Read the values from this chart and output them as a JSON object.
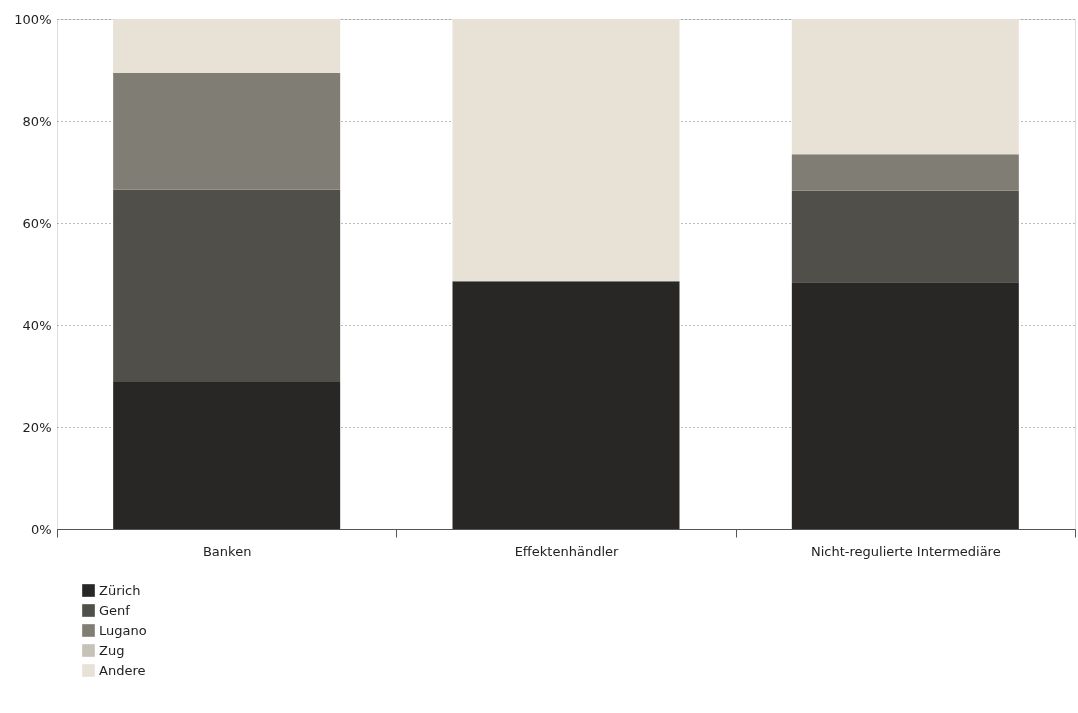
{
  "chart_data": {
    "type": "bar",
    "stacked": true,
    "categories": [
      "Banken",
      "Effektenhändler",
      "Nicht-regulierte Intermediäre"
    ],
    "series": [
      {
        "name": "Zürich",
        "color": "#282725",
        "values": [
          28.8,
          48.6,
          48.4
        ]
      },
      {
        "name": "Genf",
        "color": "#504f4a",
        "values": [
          37.7,
          0,
          17.9
        ]
      },
      {
        "name": "Lugano",
        "color": "#807d75",
        "values": [
          22.9,
          0,
          7.2
        ]
      },
      {
        "name": "Zug",
        "color": "#c6c2b8",
        "values": [
          0,
          0,
          0
        ]
      },
      {
        "name": "Andere",
        "color": "#e8e1d6",
        "values": [
          10.6,
          51.4,
          26.5
        ]
      }
    ],
    "ylim": [
      0,
      100
    ],
    "yticks": [
      {
        "value": 0,
        "label": "0%"
      },
      {
        "value": 20,
        "label": "20%"
      },
      {
        "value": 40,
        "label": "40%"
      },
      {
        "value": 60,
        "label": "60%"
      },
      {
        "value": 80,
        "label": "80%"
      },
      {
        "value": 100,
        "label": "100%"
      }
    ],
    "grid": "y",
    "legend": "bottom left"
  }
}
